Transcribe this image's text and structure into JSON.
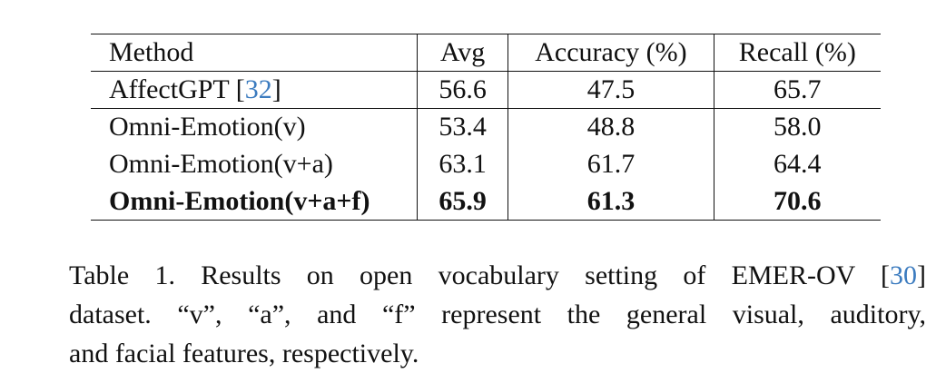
{
  "table": {
    "headers": [
      "Method",
      "Avg",
      "Accuracy (%)",
      "Recall (%)"
    ],
    "rows": [
      {
        "method": "AffectGPT [",
        "cite": "32",
        "method_end": "]",
        "avg": "56.6",
        "accuracy": "47.5",
        "recall": "65.7",
        "bold": false
      },
      {
        "method": "Omni-Emotion(v)",
        "avg": "53.4",
        "accuracy": "48.8",
        "recall": "58.0",
        "bold": false
      },
      {
        "method": "Omni-Emotion(v+a)",
        "avg": "63.1",
        "accuracy": "61.7",
        "recall": "64.4",
        "bold": false
      },
      {
        "method": "Omni-Emotion(v+a+f)",
        "avg": "65.9",
        "accuracy": "61.3",
        "recall": "70.6",
        "bold": true
      }
    ]
  },
  "caption": {
    "line1_prefix": "Table 1.  Results on open vocabulary setting of EMER-OV [",
    "line1_cite": "30",
    "line1_suffix": "]",
    "line2": "dataset. “v”, “a”, and “f” represent the general visual, auditory,",
    "line3": "and facial features, respectively."
  },
  "colors": {
    "text": "#111111",
    "citation_link": "#3b7bbf",
    "background": "#ffffff"
  }
}
